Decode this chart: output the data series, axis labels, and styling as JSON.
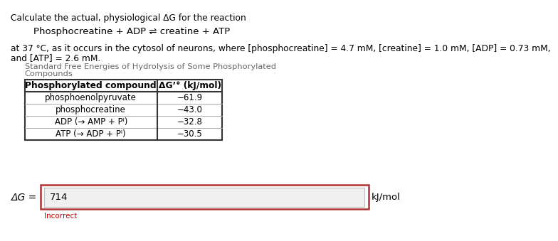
{
  "title_line": "Calculate the actual, physiological ΔG for the reaction",
  "reaction": "Phosphocreatine + ADP ⇌ creatine + ATP",
  "conditions": "at 37 °C, as it occurs in the cytosol of neurons, where [phosphocreatine] = 4.7 mM, [creatine] = 1.0 mM, [ADP] = 0.73 mM,",
  "conditions2": "and [ATP] = 2.6 mM.",
  "table_title1": "Standard Free Energies of Hydrolysis of Some Phosphorylated",
  "table_title2": "Compounds",
  "col_header1": "Phosphorylated compound",
  "col_header2": "ΔG’° (kJ/mol)",
  "rows": [
    [
      "phosphoenolpyruvate",
      "−61.9"
    ],
    [
      "phosphocreatine",
      "−43.0"
    ],
    [
      "ADP (→ AMP + Pᴵ)",
      "−32.8"
    ],
    [
      "ATP (→ ADP + Pᴵ)",
      "−30.5"
    ]
  ],
  "answer_label": "ΔG =",
  "answer_value": "714",
  "answer_unit": "kJ/mol",
  "incorrect_label": "Incorrect",
  "bg_color": "#ffffff",
  "text_color": "#000000",
  "gray_text": "#666666",
  "incorrect_color": "#cc0000",
  "table_border_color": "#333333",
  "input_border_color": "#b03030",
  "input_inner_bg": "#f0f0f0",
  "input_inner_border": "#bbbbbb"
}
